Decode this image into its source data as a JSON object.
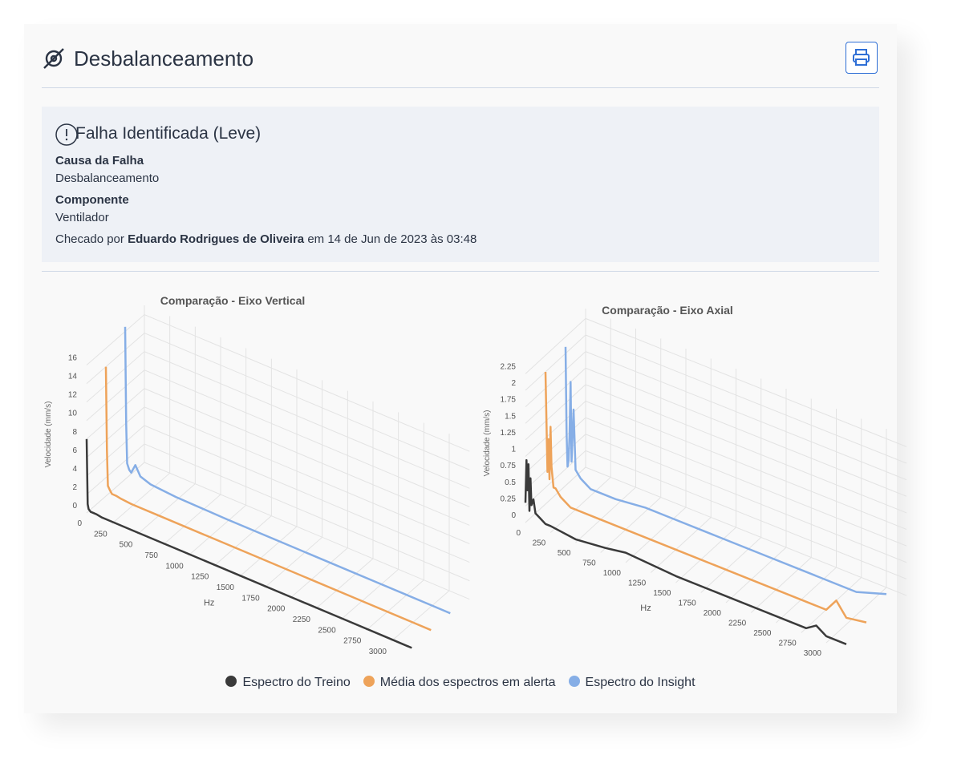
{
  "header": {
    "title": "Desbalanceamento"
  },
  "alert": {
    "title": "Falha Identificada (Leve)",
    "cause_label": "Causa da Falha",
    "cause": "Desbalanceamento",
    "component_label": "Componente",
    "component": "Ventilador",
    "checked_prefix": "Checado por",
    "checked_by": "Eduardo Rodrigues de Oliveira",
    "checked_suffix": "em 14 de Jun de 2023 às 03:48"
  },
  "chart_data": [
    {
      "type": "line3d",
      "title": "Comparação - Eixo Vertical",
      "y_label": "Velocidade (mm/s)",
      "x_label": "Hz",
      "x": [
        0,
        10,
        20,
        40,
        60,
        100,
        150,
        250,
        500,
        1000,
        1500,
        2000,
        2500,
        3000,
        3200
      ],
      "xlim": [
        0,
        3200
      ],
      "xticks": [
        0,
        250,
        500,
        750,
        1000,
        1250,
        1500,
        1750,
        2000,
        2250,
        2500,
        2750,
        3000
      ],
      "ylim": [
        0,
        17
      ],
      "yticks": [
        0,
        2,
        4,
        6,
        8,
        10,
        12,
        14,
        16
      ],
      "grid": true,
      "series": [
        {
          "name": "Espectro do Treino",
          "color": "#3a3a3a",
          "values": [
            8,
            1,
            0.5,
            0.3,
            0.3,
            0.3,
            0.2,
            0.2,
            0.2,
            0.2,
            0.2,
            0.2,
            0.2,
            0.2,
            0.2
          ]
        },
        {
          "name": "Média dos espectros em alerta",
          "color": "#eea35a",
          "values": [
            14,
            5,
            1.2,
            0.8,
            0.5,
            0.5,
            0.4,
            0.3,
            0.3,
            0.3,
            0.3,
            0.3,
            0.3,
            0.3,
            0.3
          ]
        },
        {
          "name": "Espectro do Insight",
          "color": "#86aee6",
          "values": [
            16.5,
            6,
            1.8,
            1.2,
            1,
            2,
            1,
            0.6,
            0.4,
            0.3,
            0.3,
            0.3,
            0.3,
            0.3,
            0.3
          ]
        }
      ]
    },
    {
      "type": "line3d",
      "title": "Comparação - Eixo Axial",
      "y_label": "Velocidade (mm/s)",
      "x_label": "Hz",
      "x": [
        0,
        10,
        20,
        30,
        40,
        50,
        60,
        80,
        100,
        150,
        200,
        250,
        500,
        800,
        1000,
        1500,
        2000,
        2500,
        2800,
        2900,
        3000,
        3200
      ],
      "xlim": [
        0,
        3200
      ],
      "xticks": [
        0,
        250,
        500,
        750,
        1000,
        1250,
        1500,
        1750,
        2000,
        2250,
        2500,
        2750,
        3000
      ],
      "ylim": [
        0,
        2.4
      ],
      "yticks": [
        0,
        0.25,
        0.5,
        0.75,
        1,
        1.25,
        1.5,
        1.75,
        2,
        2.25
      ],
      "grid": true,
      "series": [
        {
          "name": "Espectro do Treino",
          "color": "#3a3a3a",
          "values": [
            0.3,
            0.95,
            0.5,
            0.9,
            0.2,
            0.7,
            0.3,
            0.4,
            0.2,
            0.15,
            0.1,
            0.1,
            0.05,
            0.1,
            0.15,
            0.1,
            0.1,
            0.1,
            0.1,
            0.2,
            0.1,
            0.1
          ]
        },
        {
          "name": "Média dos espectros em alerta",
          "color": "#eea35a",
          "values": [
            2.0,
            1.2,
            0.5,
            1.0,
            0.4,
            1.2,
            0.6,
            0.3,
            0.3,
            0.2,
            0.15,
            0.1,
            0.1,
            0.1,
            0.1,
            0.1,
            0.1,
            0.1,
            0.1,
            0.3,
            0.1,
            0.15
          ]
        },
        {
          "name": "Espectro do Insight",
          "color": "#86aee6",
          "values": [
            2.1,
            0.8,
            0.3,
            0.4,
            0.8,
            1.6,
            0.4,
            1.2,
            0.3,
            0.2,
            0.15,
            0.1,
            0.1,
            0.15,
            0.15,
            0.15,
            0.15,
            0.15,
            0.15,
            0.15,
            0.2,
            0.3
          ]
        }
      ]
    }
  ]
}
